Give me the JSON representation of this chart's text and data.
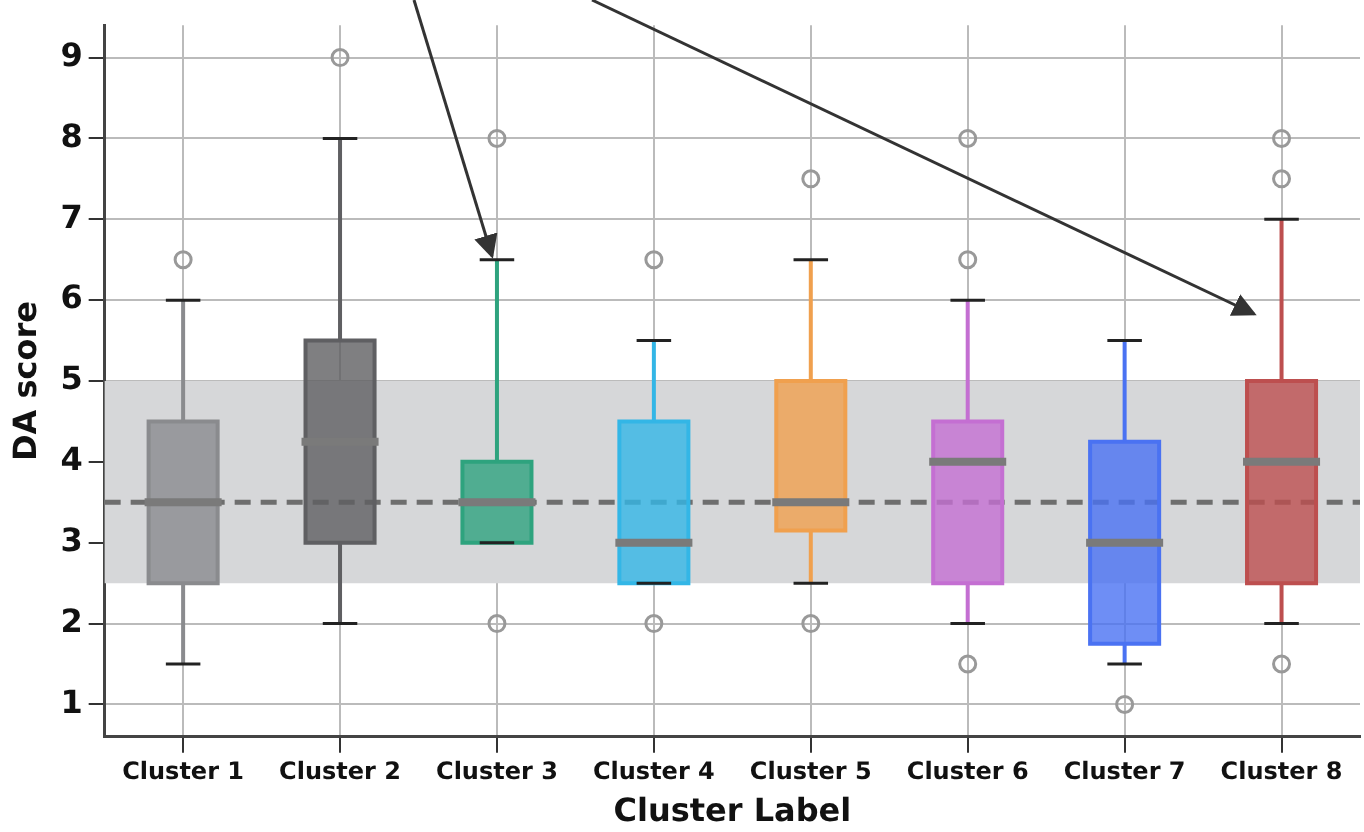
{
  "chart_data": {
    "type": "box",
    "xlabel": "Cluster Label",
    "ylabel": "DA score",
    "categories": [
      "Cluster 1",
      "Cluster 2",
      "Cluster 3",
      "Cluster 4",
      "Cluster 5",
      "Cluster 6",
      "Cluster 7",
      "Cluster 8"
    ],
    "colors": [
      "#8a8b8e",
      "#5f5f62",
      "#2ea37e",
      "#33b6e6",
      "#f0a04e",
      "#c46fd2",
      "#4a72f2",
      "#bd4f4f"
    ],
    "boxes": [
      {
        "low": 1.5,
        "q1": 2.5,
        "median": 3.5,
        "q3": 4.5,
        "high": 6,
        "outliers": [
          6.5
        ]
      },
      {
        "low": 2,
        "q1": 3,
        "median": 4.25,
        "q3": 5.5,
        "high": 8,
        "outliers": [
          9
        ]
      },
      {
        "low": 3,
        "q1": 3,
        "median": 3.5,
        "q3": 4,
        "high": 6.5,
        "outliers": [
          8,
          2
        ]
      },
      {
        "low": 2.5,
        "q1": 2.5,
        "median": 3,
        "q3": 4.5,
        "high": 5.5,
        "outliers": [
          6.5,
          2
        ]
      },
      {
        "low": 2.5,
        "q1": 3.15,
        "median": 3.5,
        "q3": 5,
        "high": 6.5,
        "outliers": [
          7.5,
          2
        ]
      },
      {
        "low": 2,
        "q1": 2.5,
        "median": 4,
        "q3": 4.5,
        "high": 6,
        "outliers": [
          8,
          6.5,
          1.5
        ]
      },
      {
        "low": 1.5,
        "q1": 1.75,
        "median": 3,
        "q3": 4.25,
        "high": 5.5,
        "outliers": [
          1
        ]
      },
      {
        "low": 2,
        "q1": 2.5,
        "median": 4,
        "q3": 5,
        "high": 7,
        "outliers": [
          8,
          7.5,
          1.5
        ]
      }
    ],
    "ylim": [
      0.6,
      9.4
    ],
    "yticks": [
      1,
      2,
      3,
      4,
      5,
      6,
      7,
      8,
      9
    ],
    "grid": true,
    "legend": false,
    "ref_lines": [
      {
        "axis": "y",
        "value": 3.5,
        "color": "#6e6e6e",
        "line_style": "dashed"
      }
    ],
    "bands": [
      {
        "axis": "y",
        "from": 2.5,
        "to": 5,
        "color": "#d6d7d9"
      }
    ]
  }
}
